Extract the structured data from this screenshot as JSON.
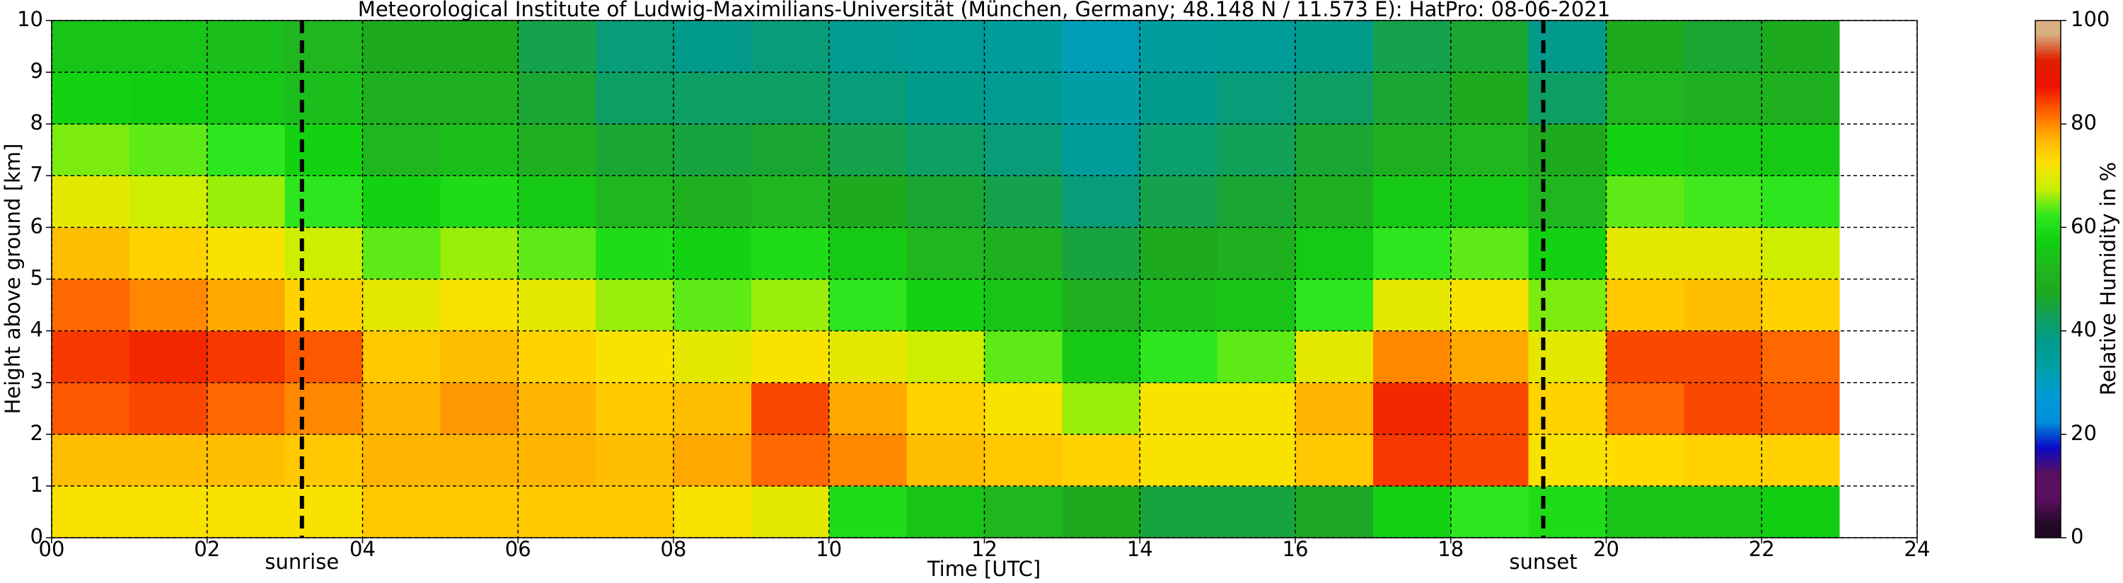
{
  "chart_data": {
    "type": "heatmap",
    "title": "Meteorological Institute of Ludwig-Maximilians-Universität (München, Germany; 48.148 N / 11.573 E):    HatPro: 08-06-2021",
    "xlabel": "Time [UTC]",
    "ylabel": "Height above ground [km]",
    "xlim": [
      0,
      24
    ],
    "ylim": [
      0,
      10
    ],
    "xticks": [
      {
        "value": 0,
        "label": "00"
      },
      {
        "value": 2,
        "label": "02"
      },
      {
        "value": 4,
        "label": "04"
      },
      {
        "value": 6,
        "label": "06"
      },
      {
        "value": 8,
        "label": "08"
      },
      10,
      12,
      14,
      16,
      18,
      20,
      22,
      24
    ],
    "yticks": [
      0,
      1,
      2,
      3,
      4,
      5,
      6,
      7,
      8,
      9,
      10
    ],
    "grid": true,
    "xbins": [
      0,
      1,
      2,
      3,
      4,
      5,
      6,
      7,
      8,
      9,
      10,
      11,
      12,
      13,
      14,
      15,
      16,
      17,
      18,
      19,
      20,
      21,
      22,
      23
    ],
    "ybins": [
      0,
      1,
      2,
      3,
      4,
      5,
      6,
      7,
      8,
      9,
      10
    ],
    "values": [
      [
        72,
        72,
        72,
        72,
        75,
        75,
        75,
        75,
        72,
        70,
        60,
        55,
        52,
        48,
        45,
        45,
        47,
        58,
        62,
        60,
        55,
        55,
        57
      ],
      [
        76,
        76,
        76,
        75,
        77,
        77,
        77,
        76,
        78,
        82,
        80,
        76,
        75,
        74,
        72,
        72,
        75,
        85,
        84,
        72,
        73,
        74,
        74
      ],
      [
        83,
        84,
        82,
        80,
        77,
        79,
        77,
        75,
        76,
        84,
        78,
        74,
        72,
        66,
        72,
        72,
        77,
        86,
        84,
        74,
        82,
        84,
        83
      ],
      [
        85,
        86,
        85,
        83,
        75,
        76,
        74,
        72,
        70,
        72,
        70,
        68,
        64,
        56,
        62,
        64,
        70,
        80,
        78,
        70,
        84,
        84,
        82
      ],
      [
        82,
        80,
        78,
        74,
        70,
        72,
        70,
        66,
        64,
        66,
        62,
        58,
        55,
        50,
        54,
        55,
        62,
        70,
        72,
        65,
        75,
        76,
        74
      ],
      [
        76,
        74,
        72,
        68,
        64,
        66,
        64,
        60,
        58,
        60,
        56,
        52,
        50,
        45,
        48,
        50,
        56,
        62,
        64,
        58,
        70,
        70,
        68
      ],
      [
        70,
        68,
        66,
        62,
        58,
        60,
        56,
        52,
        50,
        52,
        48,
        46,
        44,
        40,
        44,
        46,
        50,
        56,
        56,
        52,
        64,
        63,
        62
      ],
      [
        65,
        64,
        62,
        58,
        52,
        54,
        50,
        46,
        45,
        46,
        44,
        42,
        40,
        36,
        41,
        43,
        46,
        50,
        52,
        48,
        58,
        56,
        56
      ],
      [
        58,
        57,
        56,
        54,
        50,
        50,
        46,
        42,
        42,
        42,
        40,
        38,
        37,
        33,
        38,
        40,
        42,
        46,
        48,
        42,
        52,
        50,
        50
      ],
      [
        55,
        55,
        54,
        52,
        48,
        48,
        44,
        40,
        38,
        40,
        37,
        36,
        35,
        31,
        35,
        36,
        38,
        44,
        46,
        38,
        48,
        46,
        48
      ]
    ],
    "colormap": [
      "#220826",
      "#5a0f5f",
      "#5a0f5f",
      "#0a0ac8",
      "#0090d8",
      "#0099d8",
      "#00a0a8",
      "#009a90",
      "#10a060",
      "#1ea81e",
      "#20b820",
      "#10d010",
      "#30e820",
      "#c8f000",
      "#ffe000",
      "#ffb000",
      "#ff6000",
      "#ee1000",
      "#e02000",
      "#d8b080"
    ],
    "colorbar": {
      "label": "Relative Humidity in %",
      "lim": [
        0,
        100
      ],
      "ticks": [
        0,
        20,
        40,
        60,
        80,
        100
      ]
    },
    "annotations": [
      {
        "text": "sunrise",
        "x": 3.22
      },
      {
        "text": "sunset",
        "x": 19.19
      }
    ]
  }
}
